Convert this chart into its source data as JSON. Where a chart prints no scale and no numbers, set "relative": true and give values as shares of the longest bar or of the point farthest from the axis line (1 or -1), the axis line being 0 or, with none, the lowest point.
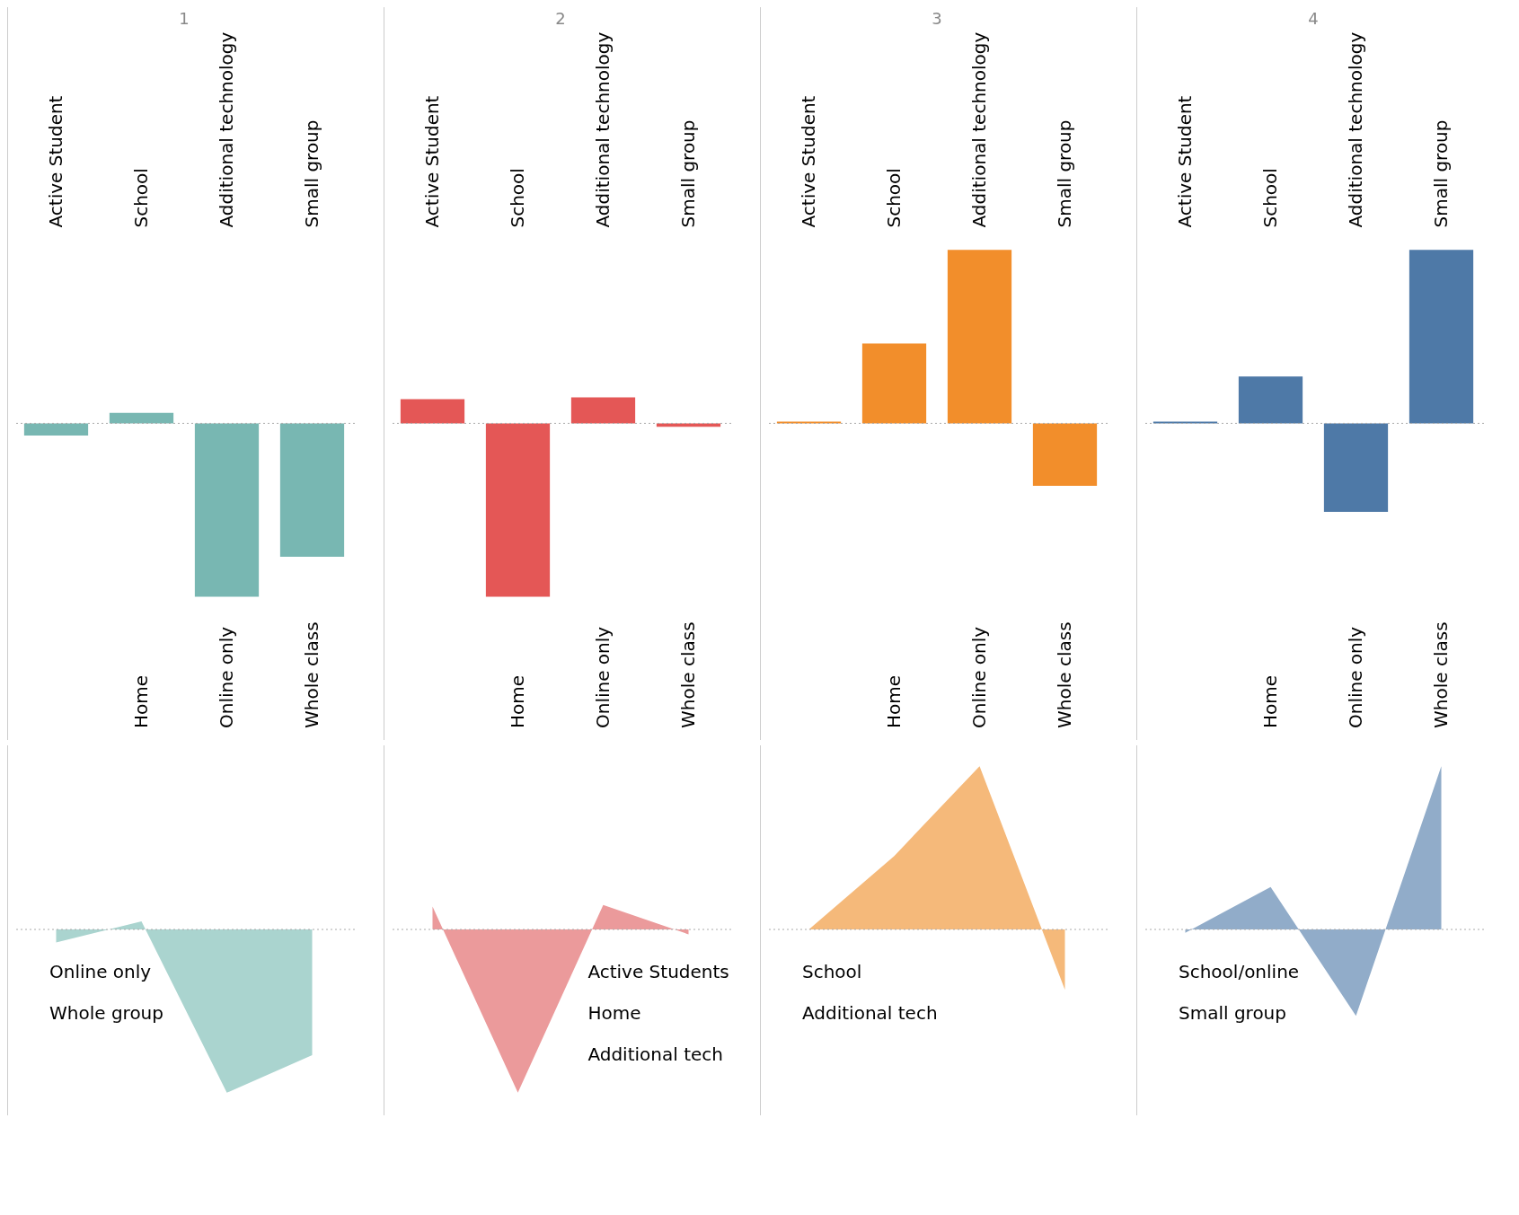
{
  "chart_data": [
    {
      "type": "bar",
      "title": "1",
      "relative": true,
      "categories": [
        "Active Student",
        "School",
        "Additional technology",
        "Small group"
      ],
      "values": [
        -0.07,
        0.06,
        -1,
        -0.77
      ],
      "color": "#78b7b2",
      "ref_lines": [
        {
          "axis": "y",
          "value": 0,
          "line_style": "dotted"
        }
      ],
      "annotations": [
        "Home",
        "Online only",
        "Whole class"
      ]
    },
    {
      "type": "bar",
      "title": "2",
      "relative": true,
      "categories": [
        "Active Student",
        "School",
        "Additional technology",
        "Small group"
      ],
      "values": [
        0.14,
        -1,
        0.15,
        -0.02
      ],
      "color": "#e45756",
      "ref_lines": [
        {
          "axis": "y",
          "value": 0,
          "line_style": "dotted"
        }
      ],
      "annotations": [
        "Home",
        "Online only",
        "Whole class"
      ]
    },
    {
      "type": "bar",
      "title": "3",
      "relative": true,
      "categories": [
        "Active Student",
        "School",
        "Additional technology",
        "Small group"
      ],
      "values": [
        0.01,
        0.46,
        1,
        -0.36
      ],
      "color": "#f28e2b",
      "ref_lines": [
        {
          "axis": "y",
          "value": 0,
          "line_style": "dotted"
        }
      ],
      "annotations": [
        "Home",
        "Online only",
        "Whole class"
      ]
    },
    {
      "type": "bar",
      "title": "4",
      "relative": true,
      "categories": [
        "Active Student",
        "School",
        "Additional technology",
        "Small group"
      ],
      "values": [
        0.01,
        0.27,
        -0.51,
        1
      ],
      "color": "#4e79a7",
      "ref_lines": [
        {
          "axis": "y",
          "value": 0,
          "line_style": "dotted"
        }
      ],
      "annotations": [
        "Home",
        "Online only",
        "Whole class"
      ]
    },
    {
      "type": "area",
      "relative": true,
      "categories": [
        null,
        null,
        null,
        null
      ],
      "values": [
        -0.08,
        0.05,
        -1,
        -0.77
      ],
      "color": "#aad4cf",
      "ref_lines": [
        {
          "axis": "y",
          "value": 0,
          "line_style": "dotted"
        }
      ],
      "annotations": [
        "Online only",
        "Whole group"
      ]
    },
    {
      "type": "area",
      "relative": true,
      "categories": [
        null,
        null,
        null,
        null
      ],
      "values": [
        0.14,
        -1,
        0.15,
        -0.03
      ],
      "color": "#eb9a9b",
      "ref_lines": [
        {
          "axis": "y",
          "value": 0,
          "line_style": "dotted"
        }
      ],
      "annotations": [
        "Active Students",
        "Home",
        "Additional tech"
      ]
    },
    {
      "type": "area",
      "relative": true,
      "categories": [
        null,
        null,
        null,
        null
      ],
      "values": [
        0,
        0.45,
        1,
        -0.37
      ],
      "color": "#f5b97a",
      "ref_lines": [
        {
          "axis": "y",
          "value": 0,
          "line_style": "dotted"
        }
      ],
      "annotations": [
        "School",
        "Additional tech"
      ]
    },
    {
      "type": "area",
      "relative": true,
      "categories": [
        null,
        null,
        null,
        null
      ],
      "values": [
        -0.02,
        0.26,
        -0.53,
        1
      ],
      "color": "#91acc9",
      "ref_lines": [
        {
          "axis": "y",
          "value": 0,
          "line_style": "dotted"
        }
      ],
      "annotations": [
        "School/online",
        "Small group"
      ]
    }
  ]
}
